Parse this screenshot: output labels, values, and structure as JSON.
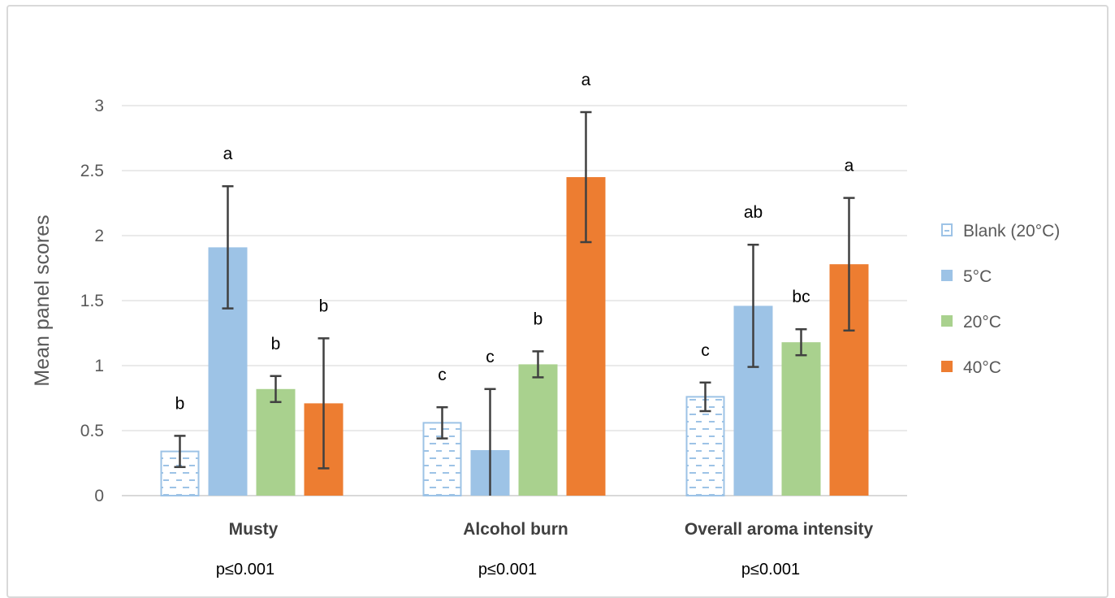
{
  "chart_data": {
    "type": "bar",
    "title": "",
    "ylabel": "Mean panel scores",
    "xlabel": "",
    "ylim": [
      0,
      3
    ],
    "yticks": [
      "0",
      "0.5",
      "1",
      "1.5",
      "2",
      "2.5",
      "3"
    ],
    "grid": true,
    "legend_position": "right",
    "categories": [
      "Musty",
      "Alcohol burn",
      "Overall aroma intensity"
    ],
    "p_values": [
      "p≤0.001",
      "p≤0.001",
      "p≤0.001"
    ],
    "series": [
      {
        "name": "Blank (20°C)",
        "color": "#9dc3e6",
        "pattern": "dashed-hatch",
        "values": [
          0.34,
          0.56,
          0.76
        ],
        "errors": [
          0.12,
          0.12,
          0.11
        ],
        "significance": [
          "b",
          "c",
          "c"
        ]
      },
      {
        "name": "5°C",
        "color": "#9dc3e6",
        "values": [
          1.91,
          0.35,
          1.46
        ],
        "errors": [
          0.47,
          0.47,
          0.47
        ],
        "significance": [
          "a",
          "c",
          "ab"
        ]
      },
      {
        "name": "20°C",
        "color": "#a9d18e",
        "values": [
          0.82,
          1.01,
          1.18
        ],
        "errors": [
          0.1,
          0.1,
          0.1
        ],
        "significance": [
          "b",
          "b",
          "bc"
        ]
      },
      {
        "name": "40°C",
        "color": "#ed7d31",
        "values": [
          0.71,
          2.45,
          1.78
        ],
        "errors": [
          0.5,
          0.5,
          0.51
        ],
        "significance": [
          "b",
          "a",
          "a"
        ]
      }
    ]
  }
}
